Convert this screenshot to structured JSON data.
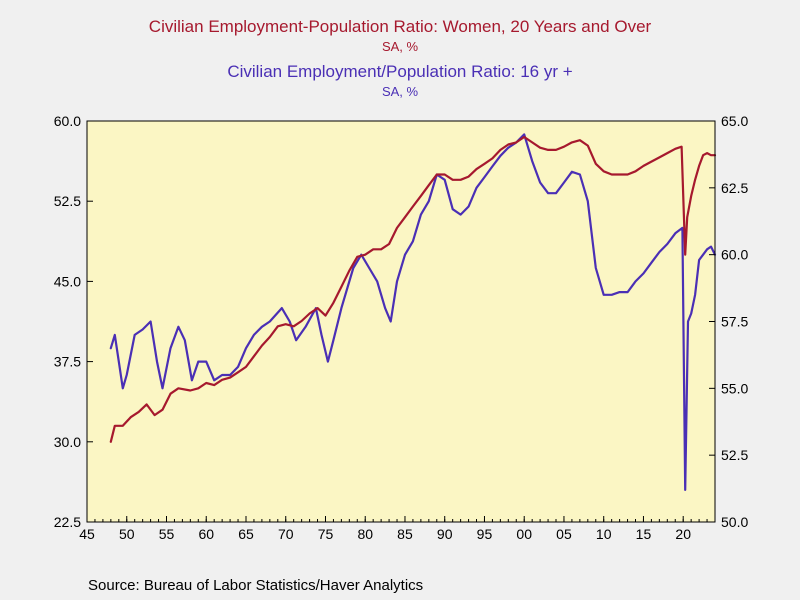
{
  "titles": {
    "left_series_title": "Civilian Employment-Population Ratio: Women, 20 Years and Over",
    "left_series_units": "SA, %",
    "right_series_title": "Civilian Employment/Population Ratio: 16 yr +",
    "right_series_units": "SA, %"
  },
  "source": "Source:  Bureau of Labor Statistics/Haver Analytics",
  "colors": {
    "left_series": "#a6192e",
    "right_series": "#4a2fb5",
    "plot_background": "#fbf6c4",
    "page_background": "#f0f0f0"
  },
  "chart_data": {
    "type": "line",
    "grid": false,
    "x_axis": {
      "range": [
        1945,
        2024
      ],
      "ticks": [
        1945,
        1950,
        1955,
        1960,
        1965,
        1970,
        1975,
        1980,
        1985,
        1990,
        1995,
        2000,
        2005,
        2010,
        2015,
        2020
      ],
      "tick_labels": [
        "45",
        "50",
        "55",
        "60",
        "65",
        "70",
        "75",
        "80",
        "85",
        "90",
        "95",
        "00",
        "05",
        "10",
        "15",
        "20"
      ]
    },
    "y_left": {
      "range": [
        22.5,
        60.0
      ],
      "ticks": [
        "22.5",
        "30.0",
        "37.5",
        "45.0",
        "52.5",
        "60.0"
      ]
    },
    "y_right": {
      "range": [
        50.0,
        65.0
      ],
      "ticks": [
        "50.0",
        "52.5",
        "55.0",
        "57.5",
        "60.0",
        "62.5",
        "65.0"
      ]
    },
    "series": [
      {
        "name": "Civilian Employment-Population Ratio: Women, 20 Years and Over",
        "axis": "left",
        "points": [
          [
            1948.0,
            30.0
          ],
          [
            1948.5,
            31.5
          ],
          [
            1949.5,
            31.5
          ],
          [
            1950.5,
            32.3
          ],
          [
            1951.5,
            32.8
          ],
          [
            1952.5,
            33.5
          ],
          [
            1953.5,
            32.5
          ],
          [
            1954.5,
            33.0
          ],
          [
            1955.5,
            34.5
          ],
          [
            1956.5,
            35.0
          ],
          [
            1958.0,
            34.8
          ],
          [
            1959.0,
            35.0
          ],
          [
            1960.0,
            35.5
          ],
          [
            1961.0,
            35.3
          ],
          [
            1962.0,
            35.8
          ],
          [
            1963.0,
            36.0
          ],
          [
            1964.0,
            36.5
          ],
          [
            1965.0,
            37.0
          ],
          [
            1966.0,
            38.0
          ],
          [
            1967.0,
            39.0
          ],
          [
            1968.0,
            39.8
          ],
          [
            1969.0,
            40.8
          ],
          [
            1970.0,
            41.0
          ],
          [
            1971.0,
            40.8
          ],
          [
            1972.0,
            41.3
          ],
          [
            1973.0,
            42.0
          ],
          [
            1974.0,
            42.5
          ],
          [
            1975.0,
            41.8
          ],
          [
            1976.0,
            43.0
          ],
          [
            1977.0,
            44.5
          ],
          [
            1978.0,
            46.0
          ],
          [
            1979.0,
            47.3
          ],
          [
            1980.0,
            47.5
          ],
          [
            1981.0,
            48.0
          ],
          [
            1982.0,
            48.0
          ],
          [
            1983.0,
            48.5
          ],
          [
            1984.0,
            50.0
          ],
          [
            1985.0,
            51.0
          ],
          [
            1986.0,
            52.0
          ],
          [
            1987.0,
            53.0
          ],
          [
            1988.0,
            54.0
          ],
          [
            1989.0,
            55.0
          ],
          [
            1990.0,
            55.0
          ],
          [
            1991.0,
            54.5
          ],
          [
            1992.0,
            54.5
          ],
          [
            1993.0,
            54.8
          ],
          [
            1994.0,
            55.5
          ],
          [
            1995.0,
            56.0
          ],
          [
            1996.0,
            56.5
          ],
          [
            1997.0,
            57.3
          ],
          [
            1998.0,
            57.8
          ],
          [
            1999.0,
            58.0
          ],
          [
            2000.0,
            58.5
          ],
          [
            2001.0,
            58.0
          ],
          [
            2002.0,
            57.5
          ],
          [
            2003.0,
            57.3
          ],
          [
            2004.0,
            57.3
          ],
          [
            2005.0,
            57.6
          ],
          [
            2006.0,
            58.0
          ],
          [
            2007.0,
            58.2
          ],
          [
            2008.0,
            57.7
          ],
          [
            2009.0,
            56.0
          ],
          [
            2010.0,
            55.3
          ],
          [
            2011.0,
            55.0
          ],
          [
            2012.0,
            55.0
          ],
          [
            2013.0,
            55.0
          ],
          [
            2014.0,
            55.3
          ],
          [
            2015.0,
            55.8
          ],
          [
            2016.0,
            56.2
          ],
          [
            2017.0,
            56.6
          ],
          [
            2018.0,
            57.0
          ],
          [
            2019.0,
            57.4
          ],
          [
            2019.8,
            57.6
          ],
          [
            2020.25,
            47.5
          ],
          [
            2020.5,
            51.0
          ],
          [
            2021.0,
            53.0
          ],
          [
            2021.5,
            54.5
          ],
          [
            2022.0,
            55.8
          ],
          [
            2022.5,
            56.8
          ],
          [
            2023.0,
            57.0
          ],
          [
            2023.5,
            56.8
          ],
          [
            2024.0,
            56.8
          ]
        ]
      },
      {
        "name": "Civilian Employment/Population Ratio: 16 yr +",
        "axis": "right",
        "points": [
          [
            1948.0,
            56.5
          ],
          [
            1948.5,
            57.0
          ],
          [
            1949.0,
            56.0
          ],
          [
            1949.5,
            55.0
          ],
          [
            1950.0,
            55.5
          ],
          [
            1951.0,
            57.0
          ],
          [
            1952.0,
            57.2
          ],
          [
            1953.0,
            57.5
          ],
          [
            1953.8,
            56.0
          ],
          [
            1954.5,
            55.0
          ],
          [
            1955.5,
            56.5
          ],
          [
            1956.5,
            57.3
          ],
          [
            1957.3,
            56.8
          ],
          [
            1958.2,
            55.3
          ],
          [
            1959.0,
            56.0
          ],
          [
            1960.0,
            56.0
          ],
          [
            1961.0,
            55.3
          ],
          [
            1962.0,
            55.5
          ],
          [
            1963.0,
            55.5
          ],
          [
            1964.0,
            55.8
          ],
          [
            1965.0,
            56.5
          ],
          [
            1966.0,
            57.0
          ],
          [
            1967.0,
            57.3
          ],
          [
            1968.0,
            57.5
          ],
          [
            1969.5,
            58.0
          ],
          [
            1970.5,
            57.5
          ],
          [
            1971.3,
            56.8
          ],
          [
            1972.5,
            57.3
          ],
          [
            1973.8,
            58.0
          ],
          [
            1974.5,
            57.0
          ],
          [
            1975.3,
            56.0
          ],
          [
            1976.0,
            56.8
          ],
          [
            1977.0,
            58.0
          ],
          [
            1978.5,
            59.5
          ],
          [
            1979.5,
            60.0
          ],
          [
            1980.5,
            59.5
          ],
          [
            1981.5,
            59.0
          ],
          [
            1982.5,
            58.0
          ],
          [
            1983.2,
            57.5
          ],
          [
            1984.0,
            59.0
          ],
          [
            1985.0,
            60.0
          ],
          [
            1986.0,
            60.5
          ],
          [
            1987.0,
            61.5
          ],
          [
            1988.0,
            62.0
          ],
          [
            1989.0,
            63.0
          ],
          [
            1990.0,
            62.8
          ],
          [
            1991.0,
            61.7
          ],
          [
            1992.0,
            61.5
          ],
          [
            1993.0,
            61.8
          ],
          [
            1994.0,
            62.5
          ],
          [
            1995.0,
            62.9
          ],
          [
            1996.0,
            63.3
          ],
          [
            1997.0,
            63.7
          ],
          [
            1998.0,
            64.0
          ],
          [
            1999.0,
            64.2
          ],
          [
            2000.0,
            64.5
          ],
          [
            2001.0,
            63.5
          ],
          [
            2002.0,
            62.7
          ],
          [
            2003.0,
            62.3
          ],
          [
            2004.0,
            62.3
          ],
          [
            2005.0,
            62.7
          ],
          [
            2006.0,
            63.1
          ],
          [
            2007.0,
            63.0
          ],
          [
            2008.0,
            62.0
          ],
          [
            2009.0,
            59.5
          ],
          [
            2010.0,
            58.5
          ],
          [
            2011.0,
            58.5
          ],
          [
            2012.0,
            58.6
          ],
          [
            2013.0,
            58.6
          ],
          [
            2014.0,
            59.0
          ],
          [
            2015.0,
            59.3
          ],
          [
            2016.0,
            59.7
          ],
          [
            2017.0,
            60.1
          ],
          [
            2018.0,
            60.4
          ],
          [
            2019.0,
            60.8
          ],
          [
            2019.9,
            61.0
          ],
          [
            2020.25,
            51.2
          ],
          [
            2020.6,
            57.5
          ],
          [
            2021.0,
            57.8
          ],
          [
            2021.5,
            58.5
          ],
          [
            2022.0,
            59.8
          ],
          [
            2022.5,
            60.0
          ],
          [
            2023.0,
            60.2
          ],
          [
            2023.5,
            60.3
          ],
          [
            2024.0,
            60.0
          ]
        ]
      }
    ]
  }
}
